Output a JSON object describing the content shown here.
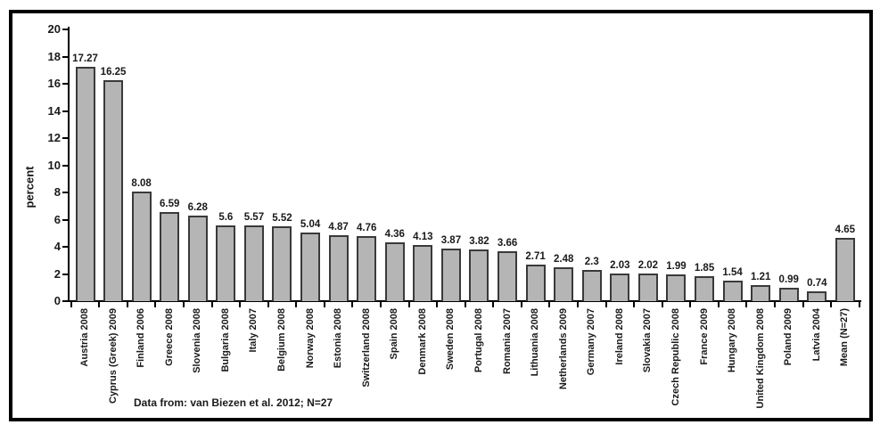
{
  "colors": {
    "background": "#ffffff",
    "frame": "#000000",
    "axis": "#000000",
    "text": "#1a1a1a",
    "bar_fill": "#b5b5b5",
    "bar_border": "#3a3a3a"
  },
  "chart_data": {
    "type": "bar",
    "title": "",
    "ylabel": "percent",
    "xlabel": "",
    "ylim": [
      0,
      20
    ],
    "ytick_step": 2,
    "yticks": [
      0,
      2,
      4,
      6,
      8,
      10,
      12,
      14,
      16,
      18,
      20
    ],
    "grid": false,
    "legend": false,
    "categories": [
      "Austria 2008",
      "Cyprus (Greek) 2009",
      "Finland 2006",
      "Greece 2008",
      "Slovenia 2008",
      "Bulgaria 2008",
      "Italy 2007",
      "Belgium 2008",
      "Norway 2008",
      "Estonia 2008",
      "Switzerland 2008",
      "Spain 2008",
      "Denmark 2008",
      "Sweden 2008",
      "Portugal 2008",
      "Romania 2007",
      "Lithuania 2008",
      "Netherlands 2009",
      "Germany 2007",
      "Ireland 2008",
      "Slovakia 2007",
      "Czech Republic 2008",
      "France 2009",
      "Hungary 2008",
      "United Kingdom 2008",
      "Poland 2009",
      "Latvia 2004",
      "Mean (N=27)"
    ],
    "values": [
      17.27,
      16.25,
      8.08,
      6.59,
      6.28,
      5.6,
      5.57,
      5.52,
      5.04,
      4.87,
      4.76,
      4.36,
      4.13,
      3.87,
      3.82,
      3.66,
      2.71,
      2.48,
      2.3,
      2.03,
      2.02,
      1.99,
      1.85,
      1.54,
      1.21,
      0.99,
      0.74,
      4.65
    ],
    "value_labels": [
      "17.27",
      "16.25",
      "8.08",
      "6.59",
      "6.28",
      "5.6",
      "5.57",
      "5.52",
      "5.04",
      "4.87",
      "4.76",
      "4.36",
      "4.13",
      "3.87",
      "3.82",
      "3.66",
      "2.71",
      "2.48",
      "2.3",
      "2.03",
      "2.02",
      "1.99",
      "1.85",
      "1.54",
      "1.21",
      "0.99",
      "0.74",
      "4.65"
    ],
    "note": "Data from: van Biezen et al. 2012; N=27"
  }
}
